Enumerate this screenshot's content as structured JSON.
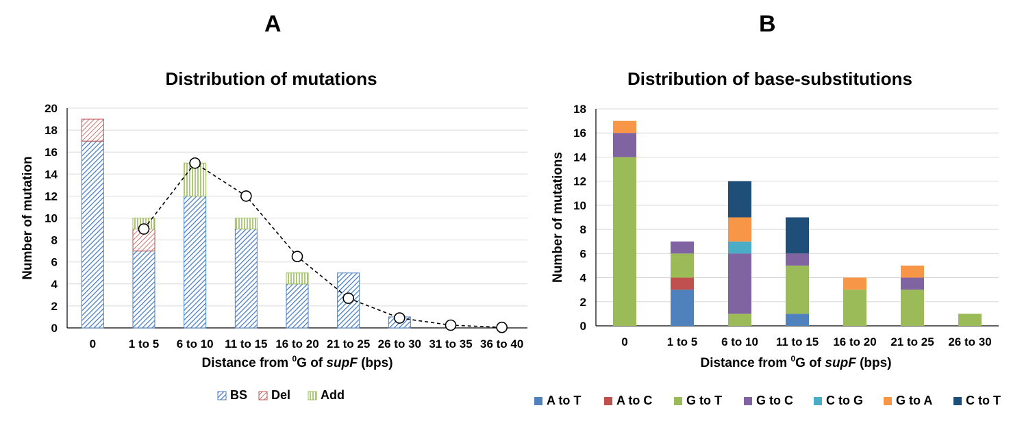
{
  "panels": {
    "a": "A",
    "b": "B"
  },
  "chart_data": [
    {
      "type": "bar",
      "stacked": true,
      "title": "Distribution of mutations",
      "ylabel": "Number of mutation",
      "xlabel_parts": [
        "Distance from ",
        "0",
        "G of ",
        "supF",
        " (bps)"
      ],
      "ylim": [
        0,
        20
      ],
      "yticks": [
        0,
        2,
        4,
        6,
        8,
        10,
        12,
        14,
        16,
        18,
        20
      ],
      "categories": [
        "0",
        "1 to 5",
        "6 to 10",
        "11 to 15",
        "16 to 20",
        "21 to 25",
        "26 to 30",
        "31 to 35",
        "36 to 40"
      ],
      "series": [
        {
          "name": "BS",
          "color": "#4a7ec2",
          "pattern": "diagonal-hatch",
          "values": [
            17,
            7,
            12,
            9,
            4,
            5,
            1,
            0,
            0
          ]
        },
        {
          "name": "Del",
          "color": "#c0504d",
          "pattern": "diagonal-hatch",
          "values": [
            2,
            2,
            0,
            0,
            0,
            0,
            0,
            0,
            0
          ]
        },
        {
          "name": "Add",
          "color": "#9bbb59",
          "pattern": "vertical-stripes",
          "values": [
            0,
            1,
            3,
            1,
            1,
            0,
            0,
            0,
            0
          ]
        }
      ],
      "overlay_line": {
        "style": "dashed",
        "marker": "open-circle",
        "values": [
          null,
          9,
          15,
          12,
          6.5,
          2.7,
          0.9,
          0.25,
          0.05
        ]
      },
      "legend": "bottom",
      "grid": true
    },
    {
      "type": "bar",
      "stacked": true,
      "title": "Distribution of base-substitutions",
      "ylabel": "Number of mutations",
      "xlabel_parts": [
        "Distance from ",
        "0",
        "G of ",
        "supF",
        " (bps)"
      ],
      "ylim": [
        0,
        18
      ],
      "yticks": [
        0,
        2,
        4,
        6,
        8,
        10,
        12,
        14,
        16,
        18
      ],
      "categories": [
        "0",
        "1 to 5",
        "6 to 10",
        "11 to 15",
        "16 to 20",
        "21 to 25",
        "26 to 30"
      ],
      "series": [
        {
          "name": "A to T",
          "color": "#4f81bd",
          "values": [
            0,
            3,
            0,
            1,
            0,
            0,
            0
          ]
        },
        {
          "name": "A to C",
          "color": "#c0504d",
          "values": [
            0,
            1,
            0,
            0,
            0,
            0,
            0
          ]
        },
        {
          "name": "G to T",
          "color": "#9bbb59",
          "values": [
            14,
            2,
            1,
            4,
            3,
            3,
            1
          ]
        },
        {
          "name": "G to C",
          "color": "#8064a2",
          "values": [
            2,
            1,
            5,
            1,
            0,
            1,
            0
          ]
        },
        {
          "name": "C to G",
          "color": "#4bacc6",
          "values": [
            0,
            0,
            1,
            0,
            0,
            0,
            0
          ]
        },
        {
          "name": "G to A",
          "color": "#f79646",
          "values": [
            1,
            0,
            2,
            0,
            1,
            1,
            0
          ]
        },
        {
          "name": "C to T",
          "color": "#1f4e79",
          "values": [
            0,
            0,
            3,
            3,
            0,
            0,
            0
          ]
        }
      ],
      "legend": "bottom",
      "grid": true
    }
  ]
}
